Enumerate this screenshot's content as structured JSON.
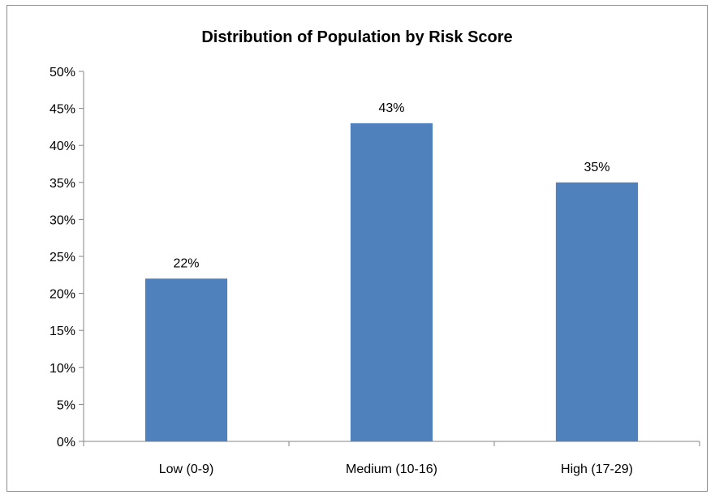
{
  "chart_data": {
    "type": "bar",
    "title": "Distribution of Population by Risk Score",
    "categories": [
      "Low (0-9)",
      "Medium (10-16)",
      "High (17-29)"
    ],
    "values": [
      22,
      43,
      35
    ],
    "data_labels": [
      "22%",
      "43%",
      "35%"
    ],
    "xlabel": "",
    "ylabel": "",
    "ylim": [
      0,
      50
    ],
    "y_ticks": [
      0,
      5,
      10,
      15,
      20,
      25,
      30,
      35,
      40,
      45,
      50
    ],
    "y_tick_labels": [
      "0%",
      "5%",
      "10%",
      "15%",
      "20%",
      "25%",
      "30%",
      "35%",
      "40%",
      "45%",
      "50%"
    ],
    "bar_color": "#4f81bd",
    "grid": false,
    "legend": "none"
  }
}
